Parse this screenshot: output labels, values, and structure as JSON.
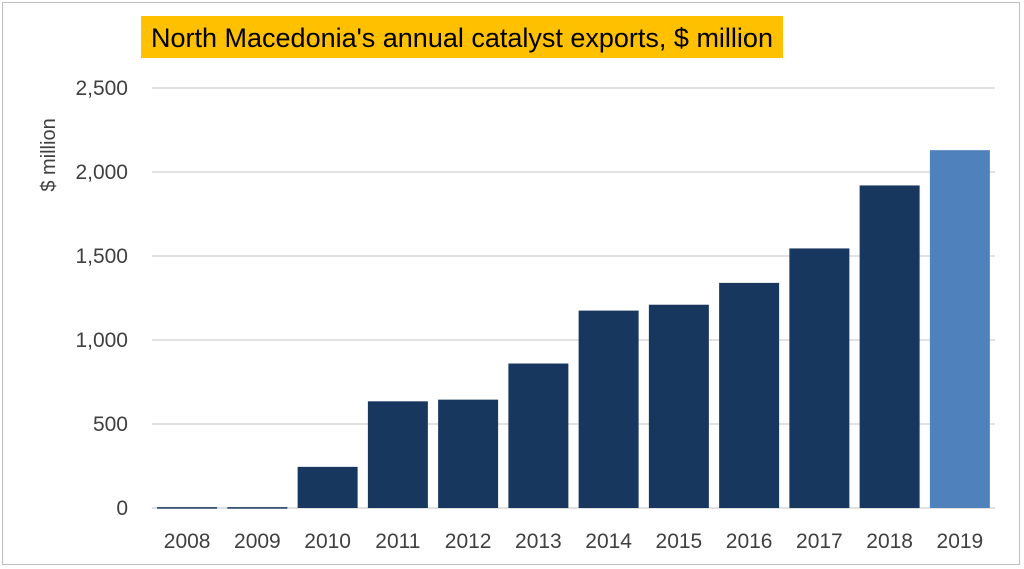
{
  "chart_data": {
    "type": "bar",
    "title": "North Macedonia's annual catalyst exports, $ million",
    "xlabel": "",
    "ylabel": "$ million",
    "ylim": [
      0,
      2500
    ],
    "yticks": [
      0,
      500,
      1000,
      1500,
      2000,
      2500
    ],
    "ytick_labels": [
      "0",
      "500",
      "1,000",
      "1,500",
      "2,000",
      "2,500"
    ],
    "grid": true,
    "categories": [
      "2008",
      "2009",
      "2010",
      "2011",
      "2012",
      "2013",
      "2014",
      "2015",
      "2016",
      "2017",
      "2018",
      "2019"
    ],
    "values": [
      5,
      5,
      245,
      635,
      645,
      860,
      1175,
      1210,
      1340,
      1545,
      1920,
      2130
    ],
    "bar_colors": [
      "#17375e",
      "#17375e",
      "#17375e",
      "#17375e",
      "#17375e",
      "#17375e",
      "#17375e",
      "#17375e",
      "#17375e",
      "#17375e",
      "#17375e",
      "#4f81bd"
    ],
    "gridline_color": "#d9d9d9",
    "title_background": "#ffc000"
  }
}
